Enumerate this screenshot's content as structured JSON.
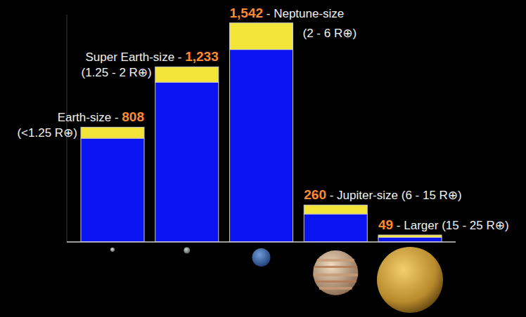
{
  "chart_data": {
    "type": "bar",
    "stacked": true,
    "categories": [
      "Earth-size",
      "Super Earth-size",
      "Neptune-size",
      "Jupiter-size",
      "Larger"
    ],
    "size_ranges": [
      "(<1.25 R⊕)",
      "(1.25 - 2 R⊕)",
      "(2 - 6 R⊕)",
      "(6 - 15 R⊕)",
      "(15 - 25 R⊕)"
    ],
    "label_separator": " - ",
    "totals": [
      808,
      1233,
      1542,
      260,
      49
    ],
    "total_labels": [
      "808",
      "1,233",
      "1,542",
      "260",
      "49"
    ],
    "series": [
      {
        "color": "#0a14f0",
        "values": [
          730,
          1125,
          1355,
          197,
          33
        ]
      },
      {
        "color": "#f2e538",
        "values": [
          78,
          108,
          187,
          63,
          16
        ]
      }
    ],
    "ylim": [
      0,
      1600
    ],
    "yticks": [],
    "tick_labels": false,
    "grid": false,
    "data_labels": false
  }
}
